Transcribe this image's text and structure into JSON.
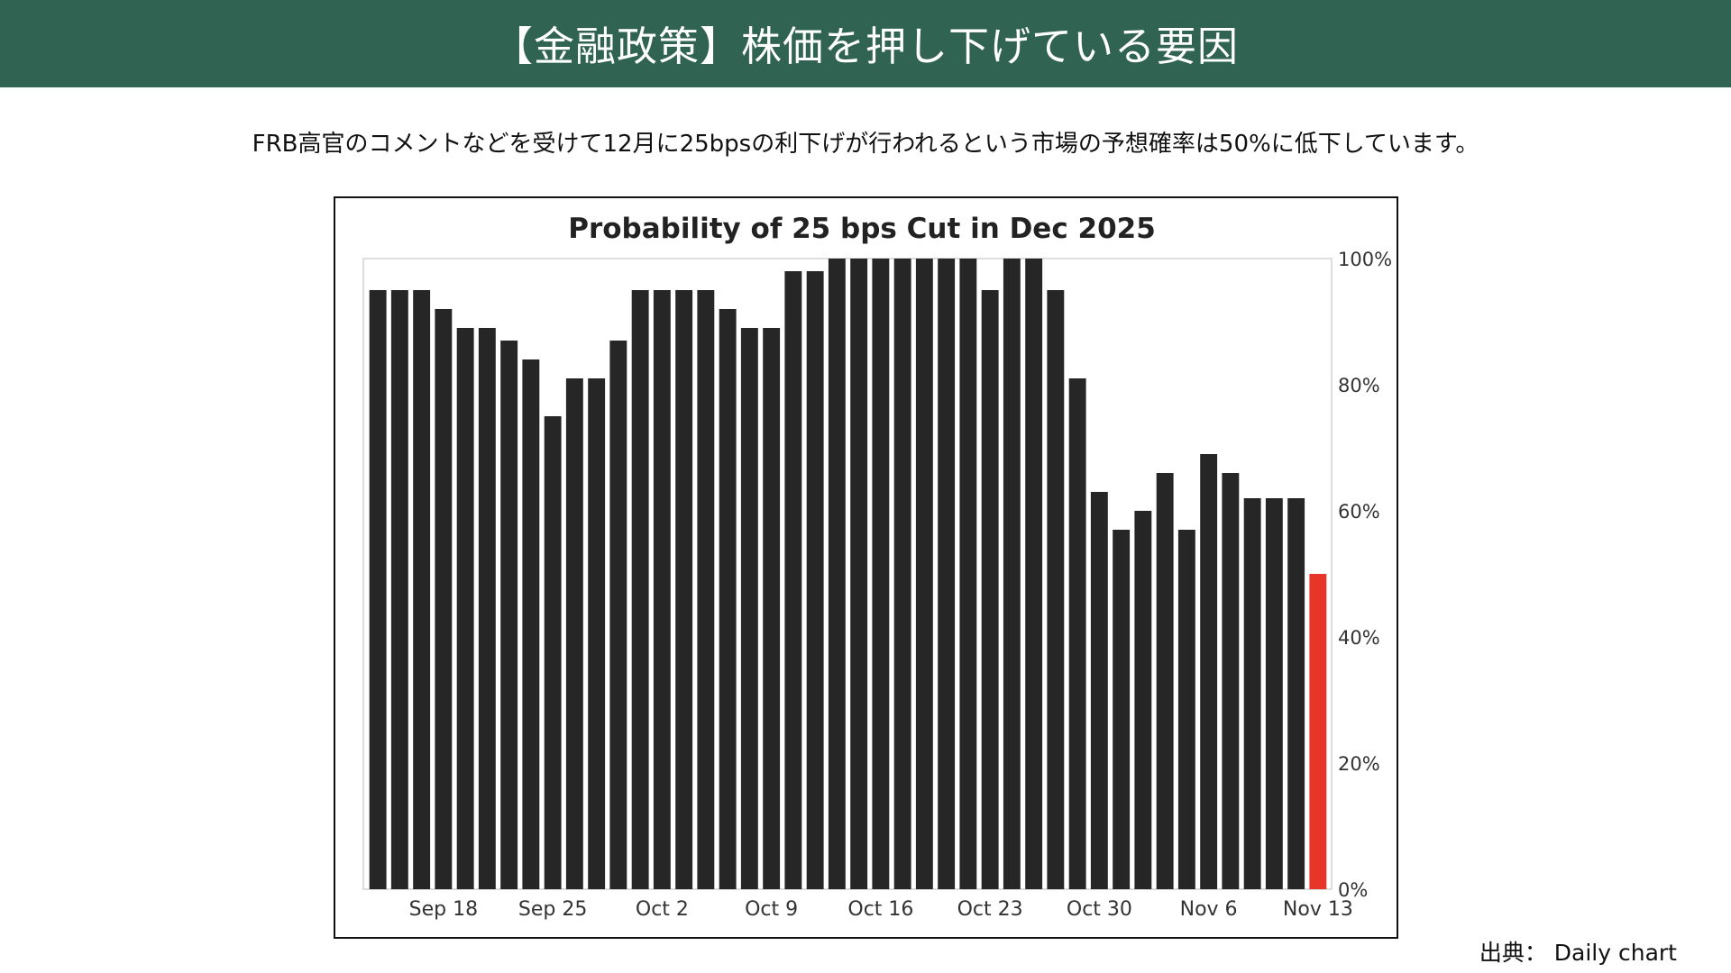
{
  "header": {
    "title": "【金融政策】株価を押し下げている要因"
  },
  "subtitle": "FRB高官のコメントなどを受けて12月に25bpsの利下げが行われるという市場の予想確率は50%に低下しています。",
  "source": "出典： Daily chart",
  "colors": {
    "header_bg": "#306352",
    "bar": "#262626",
    "highlight_bar": "#e8352a",
    "plot_frame": "#dddddd"
  },
  "chart_data": {
    "type": "bar",
    "title": "Probability of 25 bps Cut in Dec 2025",
    "xlabel": "",
    "ylabel": "",
    "ylim": [
      0,
      100
    ],
    "y_unit": "%",
    "y_axis_position": "right",
    "y_ticks": [
      {
        "value": 0,
        "label": "0%"
      },
      {
        "value": 20,
        "label": "20%"
      },
      {
        "value": 40,
        "label": "40%"
      },
      {
        "value": 60,
        "label": "60%"
      },
      {
        "value": 80,
        "label": "80%"
      },
      {
        "value": 100,
        "label": "100%"
      }
    ],
    "x_ticks": [
      {
        "index": 3,
        "label": "Sep 18"
      },
      {
        "index": 8,
        "label": "Sep 25"
      },
      {
        "index": 13,
        "label": "Oct 2"
      },
      {
        "index": 18,
        "label": "Oct 9"
      },
      {
        "index": 23,
        "label": "Oct 16"
      },
      {
        "index": 28,
        "label": "Oct 23"
      },
      {
        "index": 33,
        "label": "Oct 30"
      },
      {
        "index": 38,
        "label": "Nov 6"
      },
      {
        "index": 43,
        "label": "Nov 13"
      }
    ],
    "values": [
      95,
      95,
      95,
      92,
      89,
      89,
      87,
      84,
      75,
      81,
      81,
      87,
      95,
      95,
      95,
      95,
      92,
      89,
      89,
      98,
      98,
      100,
      100,
      100,
      100,
      100,
      100,
      100,
      95,
      100,
      100,
      95,
      81,
      63,
      57,
      60,
      66,
      57,
      69,
      66,
      62,
      62,
      62,
      50
    ],
    "highlight_index": 43,
    "grid": false,
    "legend": "none"
  }
}
